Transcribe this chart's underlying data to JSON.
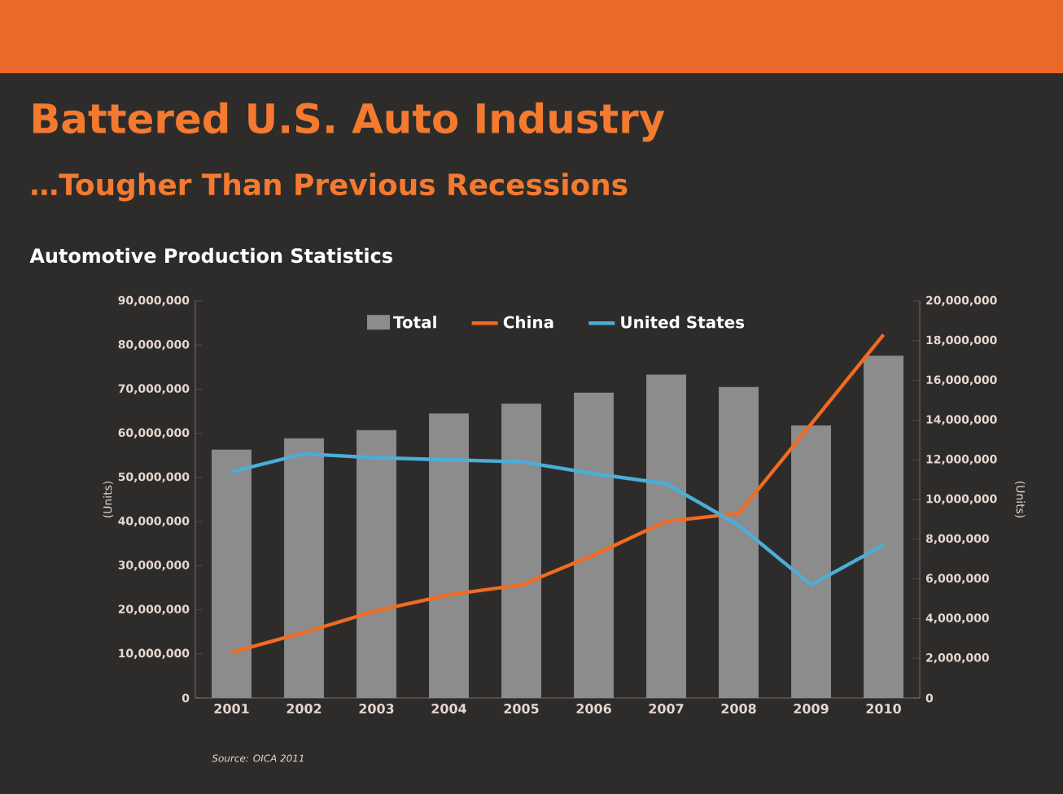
{
  "chart_data": {
    "type": "bar",
    "title": "Battered U.S. Auto Industry",
    "subtitle": "…Tougher Than Previous Recessions",
    "annotations": [
      "Automotive Production Statistics",
      "Source: OICA 2011"
    ],
    "ylabel": "(Units)",
    "y2label": "(Units)",
    "categories": [
      "2001",
      "2002",
      "2003",
      "2004",
      "2005",
      "2006",
      "2007",
      "2008",
      "2009",
      "2010"
    ],
    "series": [
      {
        "name": "Total",
        "color": "#8c8c8c",
        "values": [
          56300000,
          58900000,
          60700000,
          64500000,
          66700000,
          69200000,
          73300000,
          70500000,
          61800000,
          77600000
        ]
      },
      {
        "name": "China",
        "type": "line",
        "axis": "y2",
        "color": "#f26b21",
        "values": [
          2300000,
          3300000,
          4400000,
          5200000,
          5700000,
          7200000,
          8900000,
          9300000,
          13800000,
          18300000
        ]
      },
      {
        "name": "United States",
        "type": "line",
        "axis": "y2",
        "color": "#4aaed9",
        "values": [
          11400000,
          12300000,
          12100000,
          12000000,
          11900000,
          11300000,
          10800000,
          8700000,
          5700000,
          7700000
        ]
      }
    ],
    "ylim": [
      0,
      90000000
    ],
    "yticks": [
      {
        "value": 0,
        "label": "0"
      },
      {
        "value": 10000000,
        "label": "10,000,000"
      },
      {
        "value": 20000000,
        "label": "20,000,000"
      },
      {
        "value": 30000000,
        "label": "30,000,000"
      },
      {
        "value": 40000000,
        "label": "40,000,000"
      },
      {
        "value": 50000000,
        "label": "50,000,000"
      },
      {
        "value": 60000000,
        "label": "60,000,000"
      },
      {
        "value": 70000000,
        "label": "70,000,000"
      },
      {
        "value": 80000000,
        "label": "80,000,000"
      },
      {
        "value": 90000000,
        "label": "90,000,000"
      }
    ],
    "y2lim": [
      0,
      20000000
    ],
    "y2ticks": [
      {
        "value": 0,
        "label": "0"
      },
      {
        "value": 2000000,
        "label": "2,000,000"
      },
      {
        "value": 4000000,
        "label": "4,000,000"
      },
      {
        "value": 6000000,
        "label": "6,000,000"
      },
      {
        "value": 8000000,
        "label": "8,000,000"
      },
      {
        "value": 10000000,
        "label": "10,000,000"
      },
      {
        "value": 12000000,
        "label": "12,000,000"
      },
      {
        "value": 14000000,
        "label": "14,000,000"
      },
      {
        "value": 16000000,
        "label": "16,000,000"
      },
      {
        "value": 18000000,
        "label": "18,000,000"
      },
      {
        "value": 20000000,
        "label": "20,000,000"
      }
    ],
    "legend": "top",
    "grid": false
  }
}
